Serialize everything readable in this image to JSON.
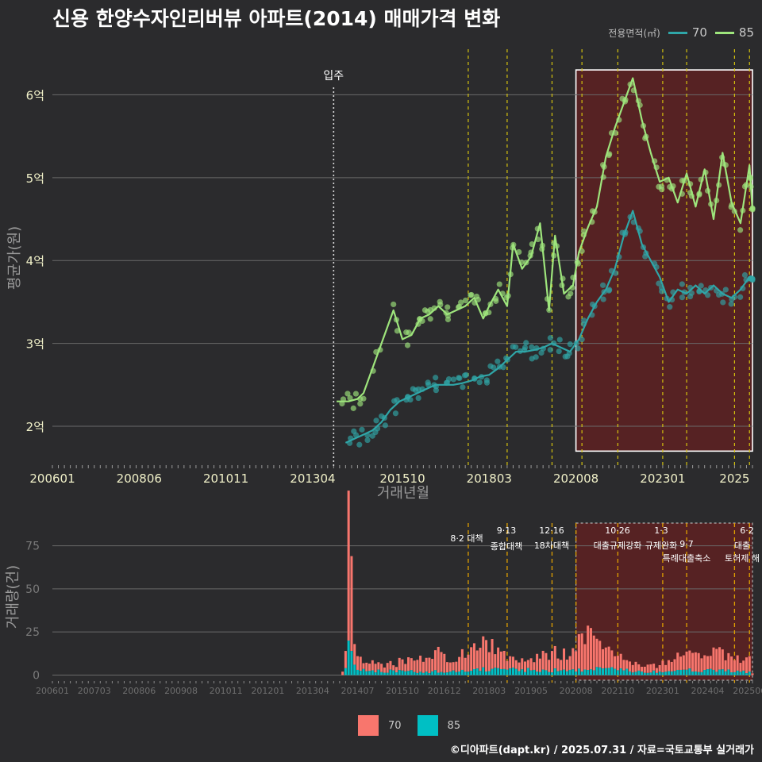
{
  "title": "신용 한양수자인리버뷰 아파트(2014) 매매가격 변화",
  "legend": {
    "title": "전용면적(㎡)",
    "items": [
      {
        "label": "70",
        "color": "#2fa6a8"
      },
      {
        "label": "85",
        "color": "#9ee57c"
      }
    ]
  },
  "bar_legend": [
    {
      "label": "70",
      "color": "#f8766d"
    },
    {
      "label": "85",
      "color": "#00bfc4"
    }
  ],
  "caption": "©디아파트(dapt.kr) / 2025.07.31 / 자료=국토교통부 실거래가",
  "chart_data": [
    {
      "type": "line",
      "xlabel": "거래년월",
      "ylabel": "평균가(원)",
      "x_ticks": [
        "200601",
        "200806",
        "201011",
        "201304",
        "201510",
        "201803",
        "202008",
        "202301",
        "2025"
      ],
      "y_ticks": [
        "2억",
        "3억",
        "4억",
        "5억",
        "6억"
      ],
      "ylim": [
        1.55,
        6.55
      ],
      "xlim": [
        "2006-01",
        "2025-07"
      ],
      "annotations": [
        {
          "x": "2013-11",
          "label": "입주"
        }
      ],
      "policy_lines": [
        "2017-08",
        "2018-09",
        "2019-12",
        "2020-10",
        "2021-10",
        "2023-01",
        "2023-09",
        "2025-01",
        "2025-06"
      ],
      "highlight_range": {
        "x": [
          "2020-08",
          "2025-07"
        ],
        "y": [
          1.7,
          6.3
        ]
      },
      "series": [
        {
          "name": "85",
          "color": "#9ee57c",
          "points": [
            [
              "2013-12",
              2.3
            ],
            [
              "2014-04",
              2.3
            ],
            [
              "2014-07",
              2.33
            ],
            [
              "2014-09",
              2.4
            ],
            [
              "2015-07",
              3.4
            ],
            [
              "2015-10",
              3.05
            ],
            [
              "2016-01",
              3.1
            ],
            [
              "2016-04",
              3.3
            ],
            [
              "2016-07",
              3.35
            ],
            [
              "2016-10",
              3.45
            ],
            [
              "2017-01",
              3.35
            ],
            [
              "2017-04",
              3.4
            ],
            [
              "2017-07",
              3.45
            ],
            [
              "2017-10",
              3.55
            ],
            [
              "2018-01",
              3.3
            ],
            [
              "2018-03",
              3.45
            ],
            [
              "2018-06",
              3.65
            ],
            [
              "2018-09",
              3.45
            ],
            [
              "2018-11",
              4.2
            ],
            [
              "2019-02",
              3.9
            ],
            [
              "2019-05",
              4.05
            ],
            [
              "2019-08",
              4.45
            ],
            [
              "2019-11",
              3.4
            ],
            [
              "2020-01",
              4.3
            ],
            [
              "2020-04",
              3.6
            ],
            [
              "2020-07",
              3.7
            ],
            [
              "2020-09",
              4.1
            ],
            [
              "2020-12",
              4.4
            ],
            [
              "2021-03",
              4.65
            ],
            [
              "2021-06",
              5.25
            ],
            [
              "2021-09",
              5.6
            ],
            [
              "2021-12",
              5.9
            ],
            [
              "2022-03",
              6.2
            ],
            [
              "2022-06",
              5.7
            ],
            [
              "2022-09",
              5.3
            ],
            [
              "2022-12",
              4.95
            ],
            [
              "2023-03",
              5.0
            ],
            [
              "2023-06",
              4.7
            ],
            [
              "2023-09",
              5.05
            ],
            [
              "2023-12",
              4.65
            ],
            [
              "2024-03",
              5.1
            ],
            [
              "2024-06",
              4.5
            ],
            [
              "2024-09",
              5.3
            ],
            [
              "2024-12",
              4.7
            ],
            [
              "2025-03",
              4.45
            ],
            [
              "2025-06",
              5.15
            ],
            [
              "2025-07",
              4.6
            ]
          ]
        },
        {
          "name": "70",
          "color": "#2fa6a8",
          "points": [
            [
              "2014-03",
              1.8
            ],
            [
              "2014-06",
              1.85
            ],
            [
              "2014-09",
              1.9
            ],
            [
              "2014-12",
              1.95
            ],
            [
              "2015-03",
              2.05
            ],
            [
              "2015-06",
              2.2
            ],
            [
              "2015-09",
              2.3
            ],
            [
              "2015-12",
              2.35
            ],
            [
              "2016-03",
              2.4
            ],
            [
              "2016-06",
              2.45
            ],
            [
              "2016-09",
              2.5
            ],
            [
              "2016-12",
              2.5
            ],
            [
              "2017-03",
              2.5
            ],
            [
              "2017-06",
              2.52
            ],
            [
              "2017-09",
              2.55
            ],
            [
              "2017-12",
              2.6
            ],
            [
              "2018-03",
              2.62
            ],
            [
              "2018-06",
              2.7
            ],
            [
              "2018-09",
              2.8
            ],
            [
              "2018-12",
              2.9
            ],
            [
              "2019-03",
              2.9
            ],
            [
              "2019-06",
              2.92
            ],
            [
              "2019-09",
              2.95
            ],
            [
              "2019-12",
              3.0
            ],
            [
              "2020-03",
              2.95
            ],
            [
              "2020-06",
              2.9
            ],
            [
              "2020-09",
              3.05
            ],
            [
              "2020-12",
              3.3
            ],
            [
              "2021-03",
              3.5
            ],
            [
              "2021-06",
              3.65
            ],
            [
              "2021-09",
              3.9
            ],
            [
              "2021-12",
              4.3
            ],
            [
              "2022-03",
              4.6
            ],
            [
              "2022-06",
              4.2
            ],
            [
              "2022-09",
              4.0
            ],
            [
              "2022-12",
              3.8
            ],
            [
              "2023-03",
              3.5
            ],
            [
              "2023-06",
              3.65
            ],
            [
              "2023-09",
              3.6
            ],
            [
              "2023-12",
              3.7
            ],
            [
              "2024-03",
              3.6
            ],
            [
              "2024-06",
              3.7
            ],
            [
              "2024-09",
              3.6
            ],
            [
              "2024-12",
              3.55
            ],
            [
              "2025-03",
              3.65
            ],
            [
              "2025-06",
              3.8
            ],
            [
              "2025-07",
              3.75
            ]
          ]
        }
      ]
    },
    {
      "type": "bar",
      "stacked": true,
      "ylabel": "거래량(건)",
      "x_ticks": [
        "200601",
        "200703",
        "200806",
        "200908",
        "201011",
        "201201",
        "201304",
        "201407",
        "201510",
        "201612",
        "201803",
        "201905",
        "202008",
        "202110",
        "202301",
        "202404",
        "202506"
      ],
      "y_ticks": [
        "0",
        "25",
        "50",
        "75"
      ],
      "ylim": [
        -3,
        90
      ],
      "policy_labels": [
        {
          "x": "2017-08",
          "label": "8·2 대책"
        },
        {
          "x": "2018-09",
          "label": "9·13"
        },
        {
          "x": "2018-09",
          "label": "종합대책"
        },
        {
          "x": "2019-12",
          "label": "12·16"
        },
        {
          "x": "2019-12",
          "label": "18차대책"
        },
        {
          "x": "2021-10",
          "label": "10·26"
        },
        {
          "x": "2021-10",
          "label": "대출규제강화"
        },
        {
          "x": "2023-01",
          "label": "1·3"
        },
        {
          "x": "2023-01",
          "label": "규제완화"
        },
        {
          "x": "2023-09",
          "label": "9·7"
        },
        {
          "x": "2023-09",
          "label": "특례대출축소"
        },
        {
          "x": "2024-12",
          "label": "토허제 해"
        },
        {
          "x": "2025-06",
          "label": "6·2"
        },
        {
          "x": "2025-06",
          "label": "대출"
        }
      ],
      "series": [
        {
          "name": "70",
          "color": "#f8766d",
          "points": [
            [
              "2014-02",
              2
            ],
            [
              "2014-03",
              10
            ],
            [
              "2014-04",
              87
            ],
            [
              "2014-05",
              55
            ],
            [
              "2014-06",
              12
            ],
            [
              "2014-07",
              8
            ],
            [
              "2014-10",
              5
            ],
            [
              "2015-01",
              5
            ],
            [
              "2015-06",
              5
            ],
            [
              "2016-01",
              7
            ],
            [
              "2016-06",
              8
            ],
            [
              "2016-10",
              15
            ],
            [
              "2017-01",
              6
            ],
            [
              "2017-06",
              12
            ],
            [
              "2017-10",
              15
            ],
            [
              "2018-01",
              18
            ],
            [
              "2018-06",
              12
            ],
            [
              "2019-01",
              5
            ],
            [
              "2019-10",
              10
            ],
            [
              "2020-01",
              13
            ],
            [
              "2020-06",
              8
            ],
            [
              "2020-09",
              20
            ],
            [
              "2021-01",
              24
            ],
            [
              "2021-06",
              12
            ],
            [
              "2022-01",
              5
            ],
            [
              "2022-10",
              4
            ],
            [
              "2023-06",
              10
            ],
            [
              "2024-01",
              11
            ],
            [
              "2024-06",
              13
            ],
            [
              "2025-01",
              7
            ],
            [
              "2025-06",
              9
            ]
          ]
        },
        {
          "name": "85",
          "color": "#00bfc4",
          "points": [
            [
              "2014-03",
              4
            ],
            [
              "2014-04",
              20
            ],
            [
              "2014-05",
              14
            ],
            [
              "2014-06",
              6
            ],
            [
              "2014-07",
              3
            ],
            [
              "2016-06",
              2
            ],
            [
              "2017-06",
              3
            ],
            [
              "2018-06",
              4
            ],
            [
              "2019-06",
              3
            ],
            [
              "2020-06",
              3
            ],
            [
              "2021-06",
              4
            ],
            [
              "2022-06",
              2
            ],
            [
              "2023-06",
              3
            ],
            [
              "2024-06",
              3
            ],
            [
              "2025-06",
              2
            ]
          ]
        }
      ]
    }
  ]
}
